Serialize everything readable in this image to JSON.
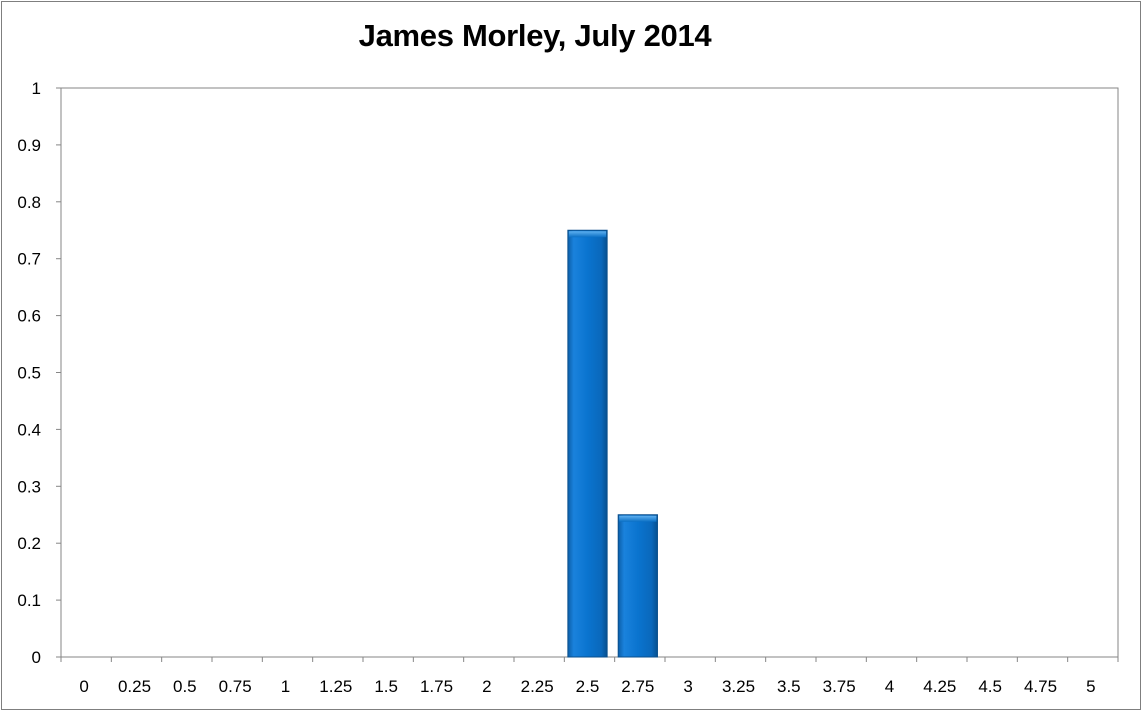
{
  "chart_data": {
    "type": "bar",
    "title": "James Morley, July 2014",
    "xlabel": "",
    "ylabel": "",
    "categories": [
      "0",
      "0.25",
      "0.5",
      "0.75",
      "1",
      "1.25",
      "1.5",
      "1.75",
      "2",
      "2.25",
      "2.5",
      "2.75",
      "3",
      "3.25",
      "3.5",
      "3.75",
      "4",
      "4.25",
      "4.5",
      "4.75",
      "5"
    ],
    "values": [
      0,
      0,
      0,
      0,
      0,
      0,
      0,
      0,
      0,
      0,
      0.75,
      0.25,
      0,
      0,
      0,
      0,
      0,
      0,
      0,
      0,
      0
    ],
    "ylim": [
      0,
      1
    ],
    "yticks": [
      "0",
      "0.1",
      "0.2",
      "0.3",
      "0.4",
      "0.5",
      "0.6",
      "0.7",
      "0.8",
      "0.9",
      "1"
    ],
    "grid": false,
    "legend": "none",
    "bar_color": "#0a6fc4"
  }
}
